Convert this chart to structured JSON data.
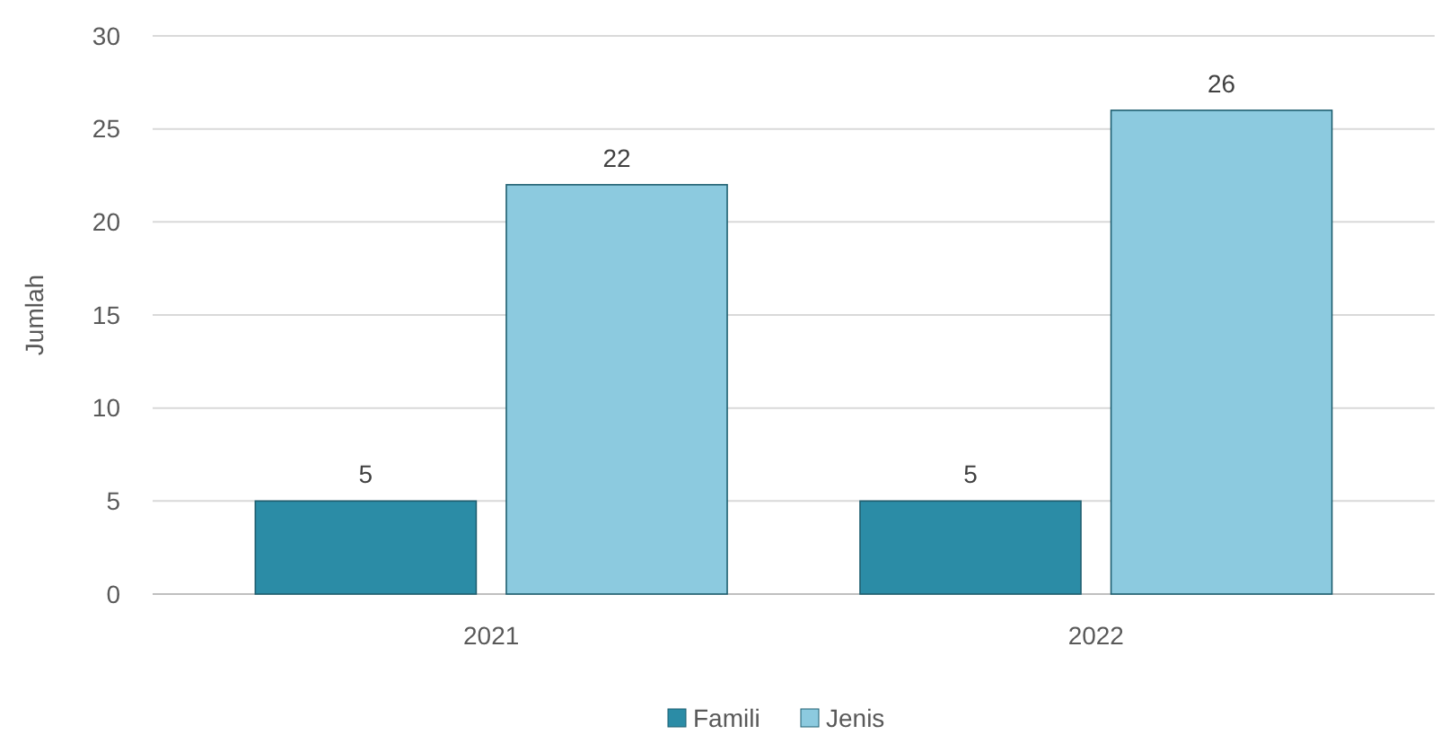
{
  "chart_data": {
    "type": "bar",
    "ylabel": "Jumlah",
    "categories": [
      "2021",
      "2022"
    ],
    "series": [
      {
        "name": "Famili",
        "color": "#2b8ca6",
        "values": [
          5,
          5
        ]
      },
      {
        "name": "Jenis",
        "color": "#8ccadf",
        "values": [
          22,
          26
        ]
      }
    ],
    "ylim": [
      0,
      30
    ],
    "yticks": [
      0,
      5,
      10,
      15,
      20,
      25,
      30
    ],
    "grid": "y",
    "legend": "bottom",
    "data_labels": true
  }
}
